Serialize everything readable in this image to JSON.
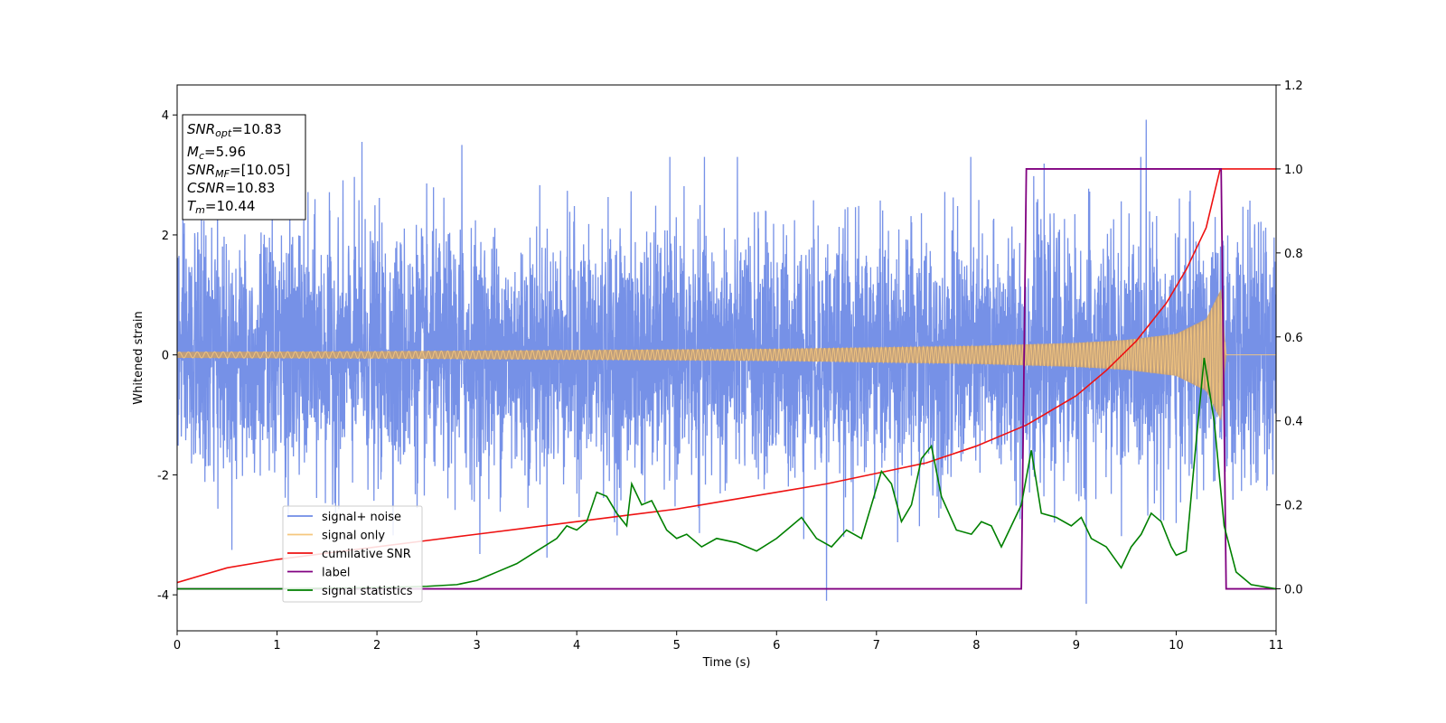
{
  "chart_data": {
    "type": "line",
    "title": "",
    "xlabel": "Time (s)",
    "ylabel": "Whitened strain",
    "y2label": "",
    "xlim": [
      0,
      11
    ],
    "ylim": [
      -4.6,
      4.5
    ],
    "y2lim": [
      -0.1,
      1.2
    ],
    "x_ticks": [
      0,
      1,
      2,
      3,
      4,
      5,
      6,
      7,
      8,
      9,
      10,
      11
    ],
    "y_ticks": [
      -4,
      -2,
      0,
      2,
      4
    ],
    "y2_ticks": [
      "0.0",
      "0.2",
      "0.4",
      "0.6",
      "0.8",
      "1.0",
      "1.2"
    ],
    "grid": false,
    "legend_position": "lower-left",
    "stats_box": {
      "snr_opt": {
        "main": "SNR",
        "sub": "opt",
        "value": "=10.83"
      },
      "mc": {
        "main": "M",
        "sub": "c",
        "value": "=5.96"
      },
      "snr_mf": {
        "main": "SNR",
        "sub": "MF",
        "value": "=[10.05]"
      },
      "csnr": {
        "main": "CSNR",
        "value": "=10.83"
      },
      "tm": {
        "main": "T",
        "sub": "m",
        "value": "=10.44"
      }
    },
    "series": [
      {
        "name": "signal+ noise",
        "axis": "left",
        "color": "#6f8be6",
        "description_values": "noise std ~1.0, peaks ~3.9",
        "noise_std": 1.0,
        "peaks": [
          {
            "x": 1.85,
            "y": 3.55
          },
          {
            "x": 2.85,
            "y": 3.5
          },
          {
            "x": 9.7,
            "y": 3.92
          },
          {
            "x": 6.5,
            "y": -4.1
          },
          {
            "x": 9.1,
            "y": -4.15
          }
        ]
      },
      {
        "name": "signal only",
        "axis": "left",
        "color": "#f5c77e",
        "envelope": [
          [
            0,
            0.05
          ],
          [
            2,
            0.06
          ],
          [
            4,
            0.08
          ],
          [
            6,
            0.1
          ],
          [
            8,
            0.15
          ],
          [
            9,
            0.2
          ],
          [
            9.5,
            0.25
          ],
          [
            10,
            0.35
          ],
          [
            10.3,
            0.6
          ],
          [
            10.45,
            1.1
          ],
          [
            10.5,
            0.0
          ],
          [
            11,
            0.0
          ]
        ]
      },
      {
        "name": "cumilative SNR",
        "axis": "right",
        "color": "#ee1111",
        "x": [
          0,
          0.5,
          1,
          1.5,
          2,
          2.5,
          3,
          3.5,
          4,
          4.5,
          5,
          5.5,
          6,
          6.5,
          7,
          7.5,
          8,
          8.5,
          9,
          9.3,
          9.6,
          9.9,
          10.1,
          10.3,
          10.44,
          10.5,
          11
        ],
        "y": [
          0.015,
          0.05,
          0.07,
          0.085,
          0.1,
          0.115,
          0.13,
          0.145,
          0.16,
          0.175,
          0.19,
          0.21,
          0.23,
          0.25,
          0.275,
          0.3,
          0.34,
          0.39,
          0.46,
          0.52,
          0.59,
          0.68,
          0.76,
          0.86,
          1.0,
          1.0,
          1.0
        ]
      },
      {
        "name": "label",
        "axis": "right",
        "color": "#800080",
        "x": [
          0,
          8.45,
          8.5,
          10.45,
          10.5,
          11
        ],
        "y": [
          0,
          0,
          1,
          1,
          0,
          0
        ]
      },
      {
        "name": "signal statistics",
        "axis": "right",
        "color": "#008000",
        "x": [
          0,
          1,
          2,
          2.5,
          2.8,
          3.0,
          3.2,
          3.4,
          3.6,
          3.8,
          3.9,
          4.0,
          4.1,
          4.2,
          4.3,
          4.4,
          4.5,
          4.55,
          4.65,
          4.75,
          4.9,
          5.0,
          5.1,
          5.25,
          5.4,
          5.6,
          5.8,
          6.0,
          6.1,
          6.25,
          6.4,
          6.55,
          6.7,
          6.85,
          6.95,
          7.05,
          7.15,
          7.25,
          7.35,
          7.45,
          7.55,
          7.65,
          7.8,
          7.95,
          8.05,
          8.15,
          8.25,
          8.35,
          8.45,
          8.55,
          8.65,
          8.8,
          8.95,
          9.05,
          9.15,
          9.3,
          9.45,
          9.55,
          9.65,
          9.75,
          9.85,
          9.95,
          10.0,
          10.1,
          10.2,
          10.28,
          10.38,
          10.48,
          10.6,
          10.75,
          11
        ],
        "y": [
          0.0,
          0.0,
          0.003,
          0.006,
          0.01,
          0.02,
          0.04,
          0.06,
          0.09,
          0.12,
          0.15,
          0.14,
          0.16,
          0.23,
          0.22,
          0.18,
          0.15,
          0.25,
          0.2,
          0.21,
          0.14,
          0.12,
          0.13,
          0.1,
          0.12,
          0.11,
          0.09,
          0.12,
          0.14,
          0.17,
          0.12,
          0.1,
          0.14,
          0.12,
          0.2,
          0.28,
          0.25,
          0.16,
          0.2,
          0.31,
          0.34,
          0.22,
          0.14,
          0.13,
          0.16,
          0.15,
          0.1,
          0.15,
          0.2,
          0.33,
          0.18,
          0.17,
          0.15,
          0.17,
          0.12,
          0.1,
          0.05,
          0.1,
          0.13,
          0.18,
          0.16,
          0.1,
          0.08,
          0.09,
          0.35,
          0.55,
          0.4,
          0.15,
          0.04,
          0.01,
          0.0
        ]
      }
    ]
  }
}
